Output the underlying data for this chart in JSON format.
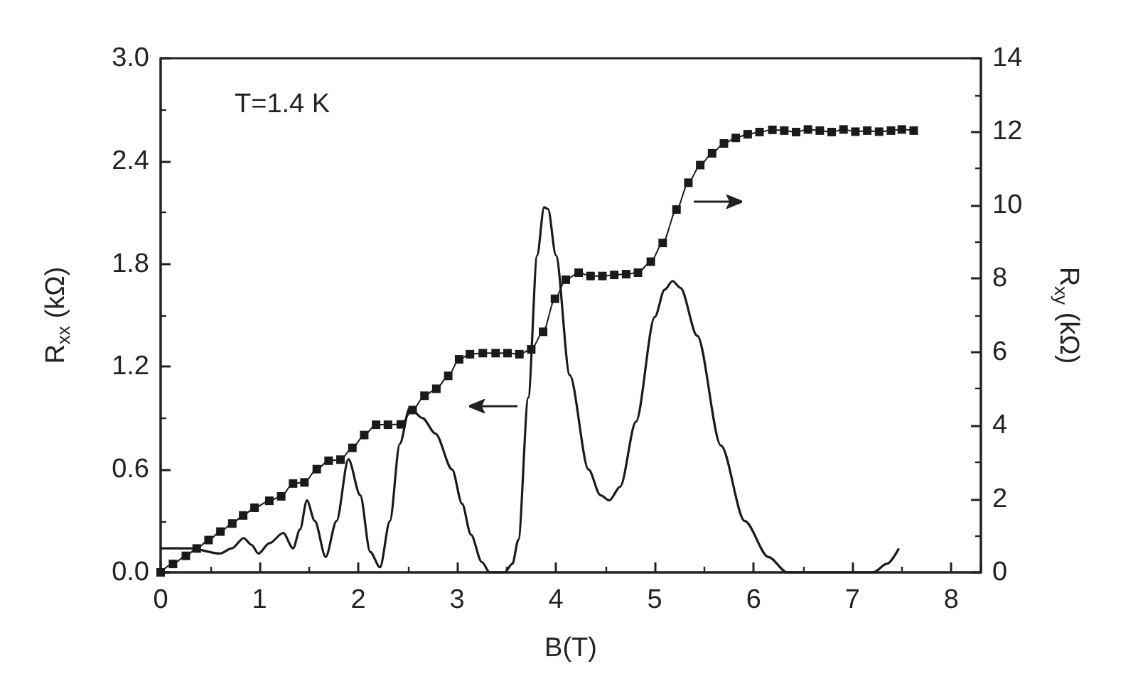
{
  "chart_data": {
    "type": "line",
    "xlabel": "B(T)",
    "ylabel": "R$_{xx}$ (kΩ)",
    "y2label": "R$_{xy}$ (kΩ)",
    "annotations": [
      "T=1.4 K"
    ],
    "xlim": [
      0,
      8.3
    ],
    "xticks": [
      0,
      1,
      2,
      3,
      4,
      5,
      6,
      7,
      8
    ],
    "ylim": [
      0,
      3
    ],
    "yticks": [
      {
        "value": 0,
        "label": "0.0"
      },
      {
        "value": 0.6,
        "label": "0.6"
      },
      {
        "value": 1.2,
        "label": "1.2"
      },
      {
        "value": 1.8,
        "label": "1.8"
      },
      {
        "value": 2.4,
        "label": "2.4"
      },
      {
        "value": 3,
        "label": "3.0"
      }
    ],
    "y2lim": [
      0,
      14
    ],
    "y2ticks": [
      0,
      2,
      4,
      6,
      8,
      10,
      12,
      14
    ],
    "grid": false,
    "series": [
      {
        "color": "#1a1a1a",
        "marker": "none",
        "x": [
          0,
          0.3,
          0.6,
          0.72,
          0.84,
          0.92,
          0.99,
          1.1,
          1.24,
          1.34,
          1.41,
          1.48,
          1.56,
          1.67,
          1.78,
          1.9,
          2.02,
          2.12,
          2.22,
          2.32,
          2.42,
          2.52,
          2.65,
          2.78,
          2.95,
          3.05,
          3.14,
          3.25,
          3.33,
          3.48,
          3.56,
          3.62,
          3.72,
          3.81,
          3.88,
          3.92,
          4.0,
          4.14,
          4.33,
          4.45,
          4.54,
          4.65,
          4.81,
          5.0,
          5.1,
          5.18,
          5.26,
          5.43,
          5.67,
          5.91,
          6.15,
          6.34,
          7.21,
          7.35,
          7.47
        ],
        "values": [
          0.14,
          0.14,
          0.11,
          0.14,
          0.2,
          0.16,
          0.11,
          0.17,
          0.23,
          0.14,
          0.25,
          0.42,
          0.3,
          0.09,
          0.3,
          0.66,
          0.45,
          0.12,
          0.03,
          0.3,
          0.75,
          0.96,
          0.9,
          0.81,
          0.6,
          0.4,
          0.22,
          0.06,
          0,
          0,
          0.05,
          0.19,
          1.02,
          1.85,
          2.13,
          2.12,
          1.85,
          1.15,
          0.6,
          0.45,
          0.42,
          0.5,
          0.88,
          1.49,
          1.65,
          1.7,
          1.66,
          1.38,
          0.74,
          0.3,
          0.09,
          0,
          0,
          0.05,
          0.14
        ]
      },
      {
        "color": "#1a1a1a",
        "marker": "square",
        "axis": "y2",
        "x": [
          0,
          0.125,
          0.255,
          0.365,
          0.485,
          0.605,
          0.725,
          0.835,
          0.95,
          1.1,
          1.22,
          1.34,
          1.455,
          1.58,
          1.7,
          1.82,
          1.94,
          2.06,
          2.18,
          2.3,
          2.43,
          2.55,
          2.67,
          2.79,
          2.91,
          3.02,
          3.13,
          3.26,
          3.39,
          3.51,
          3.63,
          3.75,
          3.87,
          3.99,
          4.1,
          4.23,
          4.35,
          4.47,
          4.59,
          4.71,
          4.83,
          4.96,
          5.08,
          5.22,
          5.34,
          5.46,
          5.58,
          5.7,
          5.82,
          5.94,
          6.06,
          6.19,
          6.31,
          6.43,
          6.55,
          6.67,
          6.79,
          6.91,
          7.03,
          7.15,
          7.27,
          7.39,
          7.5,
          7.62
        ],
        "values": [
          0,
          0.23,
          0.45,
          0.65,
          0.88,
          1.11,
          1.33,
          1.55,
          1.76,
          1.95,
          2.07,
          2.42,
          2.45,
          2.81,
          3.04,
          3.07,
          3.39,
          3.74,
          4.02,
          4.02,
          4.03,
          4.42,
          4.81,
          5.0,
          5.35,
          5.8,
          5.94,
          5.97,
          5.97,
          5.97,
          5.94,
          6.07,
          6.55,
          7.45,
          7.97,
          8.16,
          8.07,
          8.07,
          8.1,
          8.12,
          8.16,
          8.46,
          8.97,
          9.88,
          10.61,
          11.09,
          11.41,
          11.68,
          11.83,
          11.93,
          11.99,
          12.05,
          12.03,
          11.99,
          12.06,
          12.03,
          11.99,
          12.06,
          12.0,
          12.03,
          12.0,
          12.03,
          12.06,
          12.03
        ]
      }
    ]
  }
}
